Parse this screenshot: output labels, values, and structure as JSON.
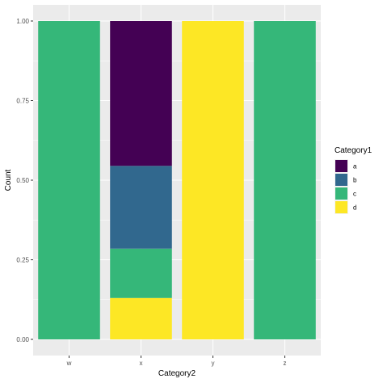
{
  "chart_data": {
    "type": "bar",
    "stacked": true,
    "position": "fill",
    "categories": [
      "w",
      "x",
      "y",
      "z"
    ],
    "xlabel": "Category2",
    "ylabel": "Count",
    "ylim": [
      0,
      1
    ],
    "yticks": [
      0,
      0.25,
      0.5,
      0.75,
      1
    ],
    "ytick_labels": [
      "0.00",
      "0.25",
      "0.50",
      "0.75",
      "1.00"
    ],
    "grid": true,
    "legend": {
      "title": "Category1",
      "placement": "right",
      "entries": [
        "a",
        "b",
        "c",
        "d"
      ]
    },
    "series": [
      {
        "name": "d",
        "color": "#FDE725",
        "values": [
          0,
          0.13,
          1,
          0
        ]
      },
      {
        "name": "c",
        "color": "#35B779",
        "values": [
          1,
          0.155,
          0,
          1
        ]
      },
      {
        "name": "b",
        "color": "#31688E",
        "values": [
          0,
          0.26,
          0,
          0
        ]
      },
      {
        "name": "a",
        "color": "#440154",
        "values": [
          0,
          0.455,
          0,
          0
        ]
      }
    ],
    "colors": {
      "a": "#440154",
      "b": "#31688E",
      "c": "#35B779",
      "d": "#FDE725",
      "panel_background": "#EBEBEB",
      "grid": "#FFFFFF"
    }
  }
}
